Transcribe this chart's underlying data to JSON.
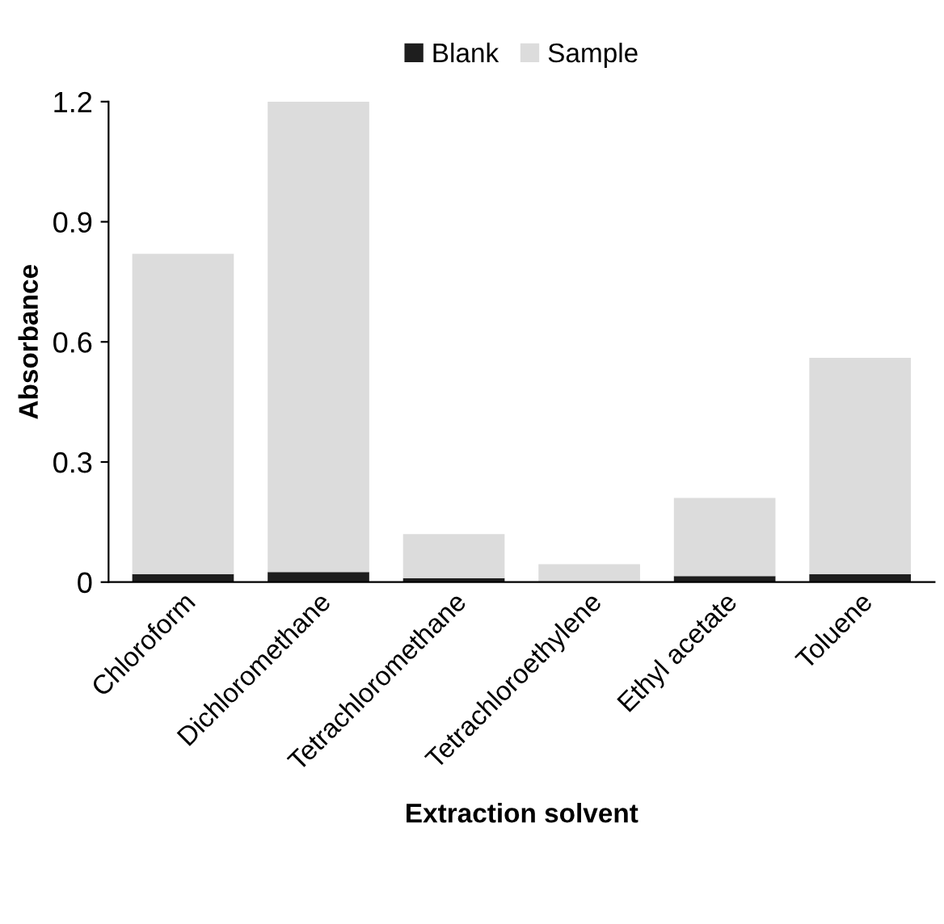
{
  "chart_data": {
    "type": "bar",
    "stacked": true,
    "xlabel": "Extraction solvent",
    "ylabel": "Absorbance",
    "categories": [
      "Chloroform",
      "Dichloromethane",
      "Tetrachloromethane",
      "Tetrachloroethylene",
      "Ethyl acetate",
      "Toluene"
    ],
    "series": [
      {
        "name": "Blank",
        "color": "#1e1e1e",
        "values": [
          0.02,
          0.025,
          0.01,
          null,
          0.015,
          0.02
        ]
      },
      {
        "name": "Sample",
        "color": "#dcdcdc",
        "values": [
          0.8,
          1.175,
          0.11,
          0.045,
          0.195,
          0.54
        ]
      }
    ],
    "ylim": [
      0,
      1.2
    ],
    "yticks": [
      0,
      0.3,
      0.6,
      0.9,
      1.2
    ],
    "grid": false,
    "legend": "top"
  }
}
